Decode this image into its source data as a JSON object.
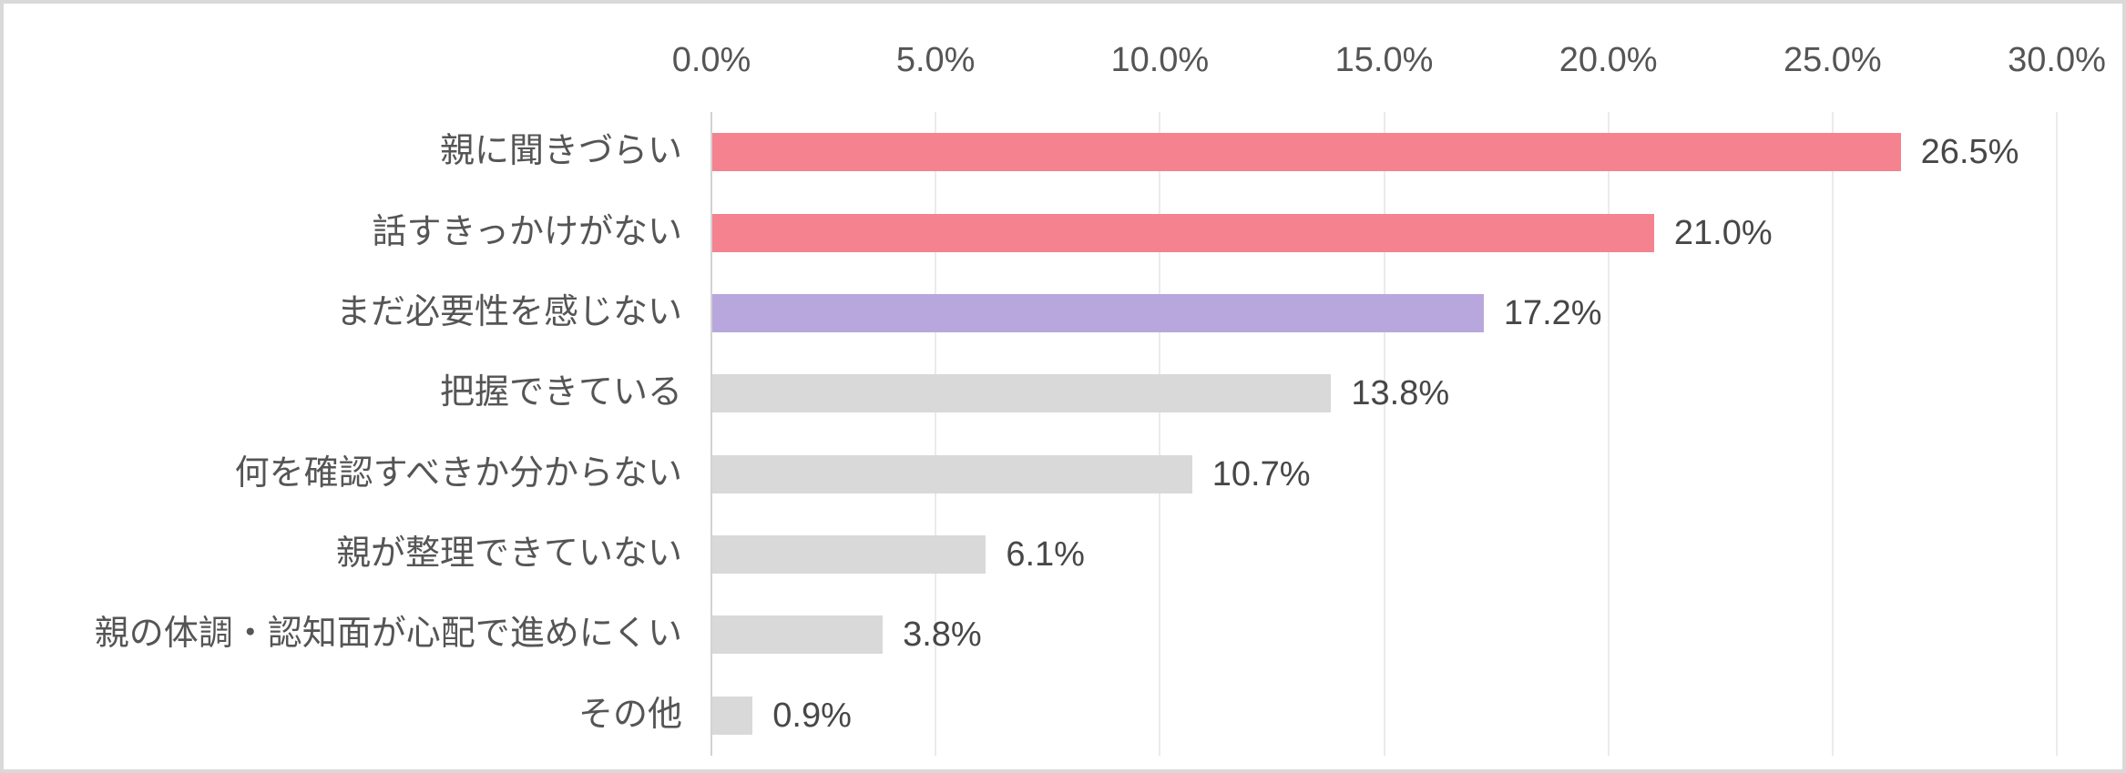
{
  "chart_data": {
    "type": "bar",
    "orientation": "horizontal",
    "title": "",
    "categories": [
      "親に聞きづらい",
      "話すきっかけがない",
      "まだ必要性を感じない",
      "把握できている",
      "何を確認すべきか分からない",
      "親が整理できていない",
      "親の体調・認知面が心配で進めにくい",
      "その他"
    ],
    "values": [
      26.5,
      21.0,
      17.2,
      13.8,
      10.7,
      6.1,
      3.8,
      0.9
    ],
    "value_labels": [
      "26.5%",
      "21.0%",
      "17.2%",
      "13.8%",
      "10.7%",
      "6.1%",
      "3.8%",
      "0.9%"
    ],
    "bar_colors": [
      "#f5828f",
      "#f5828f",
      "#b8a7dc",
      "#d9d9d9",
      "#d9d9d9",
      "#d9d9d9",
      "#d9d9d9",
      "#d9d9d9"
    ],
    "x_axis": {
      "position": "top",
      "min": 0,
      "max": 30,
      "tick_values": [
        0,
        5,
        10,
        15,
        20,
        25,
        30
      ],
      "tick_labels": [
        "0.0%",
        "5.0%",
        "10.0%",
        "15.0%",
        "20.0%",
        "25.0%",
        "30.0%"
      ]
    },
    "grid": true,
    "legend": false,
    "colors": {
      "accent_pink": "#f5828f",
      "accent_purple": "#b8a7dc",
      "neutral_bar": "#d9d9d9",
      "gridline": "#ebebeb",
      "axis_line": "#d2d2d2",
      "tick_text": "#555555",
      "category_text": "#555555",
      "value_text": "#474747",
      "frame_border": "#d9d9d9",
      "background": "#ffffff"
    }
  }
}
